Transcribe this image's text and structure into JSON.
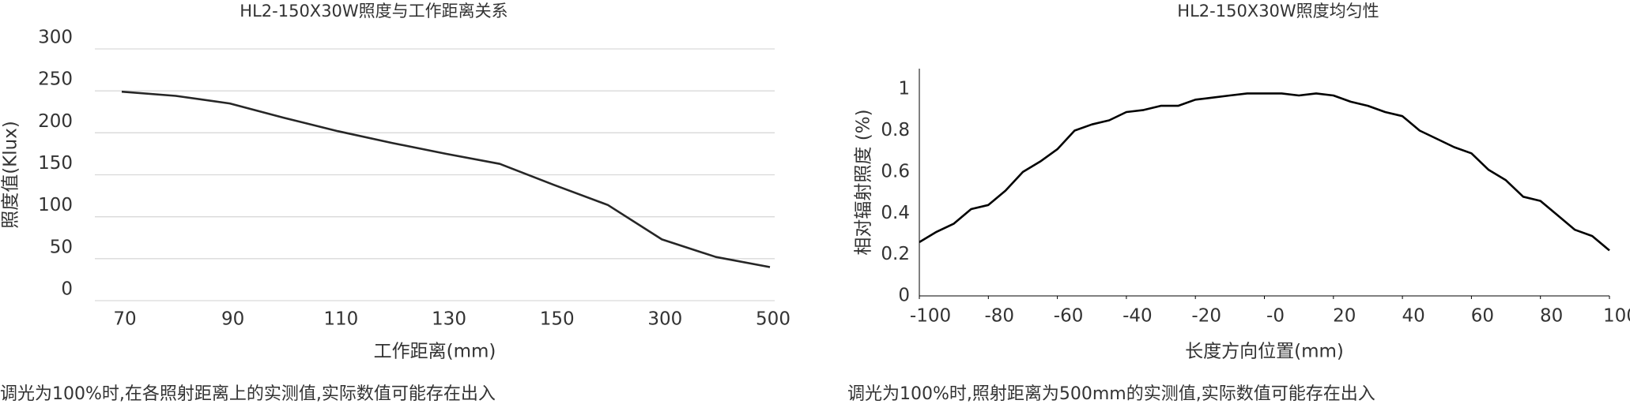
{
  "chart_data": [
    {
      "type": "line",
      "title": "HL2-150X30W照度与工作距离关系",
      "x_label": "工作距离(mm)",
      "y_label": "照度值(Klux)",
      "categories": [
        "70",
        null,
        "90",
        null,
        "110",
        null,
        "130",
        null,
        "150",
        null,
        "300",
        null,
        "500"
      ],
      "values": [
        249,
        244,
        235,
        218,
        202,
        188,
        175,
        163,
        138,
        114,
        73,
        52,
        40
      ],
      "color": "#262626",
      "ylim": [
        0,
        300
      ],
      "yticks": [
        0,
        50,
        100,
        150,
        200,
        250,
        300
      ],
      "grid": true,
      "note": "调光为100%时,在各照射距离上的实测值,实际数值可能存在出入"
    },
    {
      "type": "line",
      "title": "HL2-150X30W照度均匀性",
      "x_label": "长度方向位置(mm)",
      "y_label": "相对辐射照度 (%)",
      "x": [
        -100,
        -95,
        -90,
        -85,
        -80,
        -75,
        -70,
        -65,
        -60,
        -55,
        -50,
        -45,
        -40,
        -35,
        -30,
        -25,
        -20,
        -15,
        -10,
        -5,
        0,
        5,
        10,
        15,
        20,
        25,
        30,
        35,
        40,
        45,
        50,
        55,
        60,
        65,
        70,
        75,
        80,
        85,
        90,
        95,
        100
      ],
      "values": [
        0.26,
        0.31,
        0.35,
        0.42,
        0.44,
        0.51,
        0.6,
        0.65,
        0.71,
        0.8,
        0.83,
        0.85,
        0.89,
        0.9,
        0.92,
        0.92,
        0.95,
        0.96,
        0.97,
        0.98,
        0.98,
        0.98,
        0.97,
        0.98,
        0.97,
        0.94,
        0.92,
        0.89,
        0.87,
        0.8,
        0.76,
        0.72,
        0.69,
        0.61,
        0.56,
        0.48,
        0.46,
        0.39,
        0.32,
        0.29,
        0.22
      ],
      "color": "#000000",
      "xlim": [
        -100,
        100
      ],
      "xticks": [
        -100,
        -80,
        -60,
        -40,
        -20,
        {
          "value": 0,
          "label": "-0"
        },
        20,
        40,
        60,
        80,
        100
      ],
      "ylim": [
        0,
        1.1
      ],
      "yticks": [
        0,
        0.2,
        0.4,
        0.6,
        0.8,
        1
      ],
      "grid": false,
      "note": "调光为100%时,照射距离为500mm的实测值,实际数值可能存在出入"
    }
  ]
}
